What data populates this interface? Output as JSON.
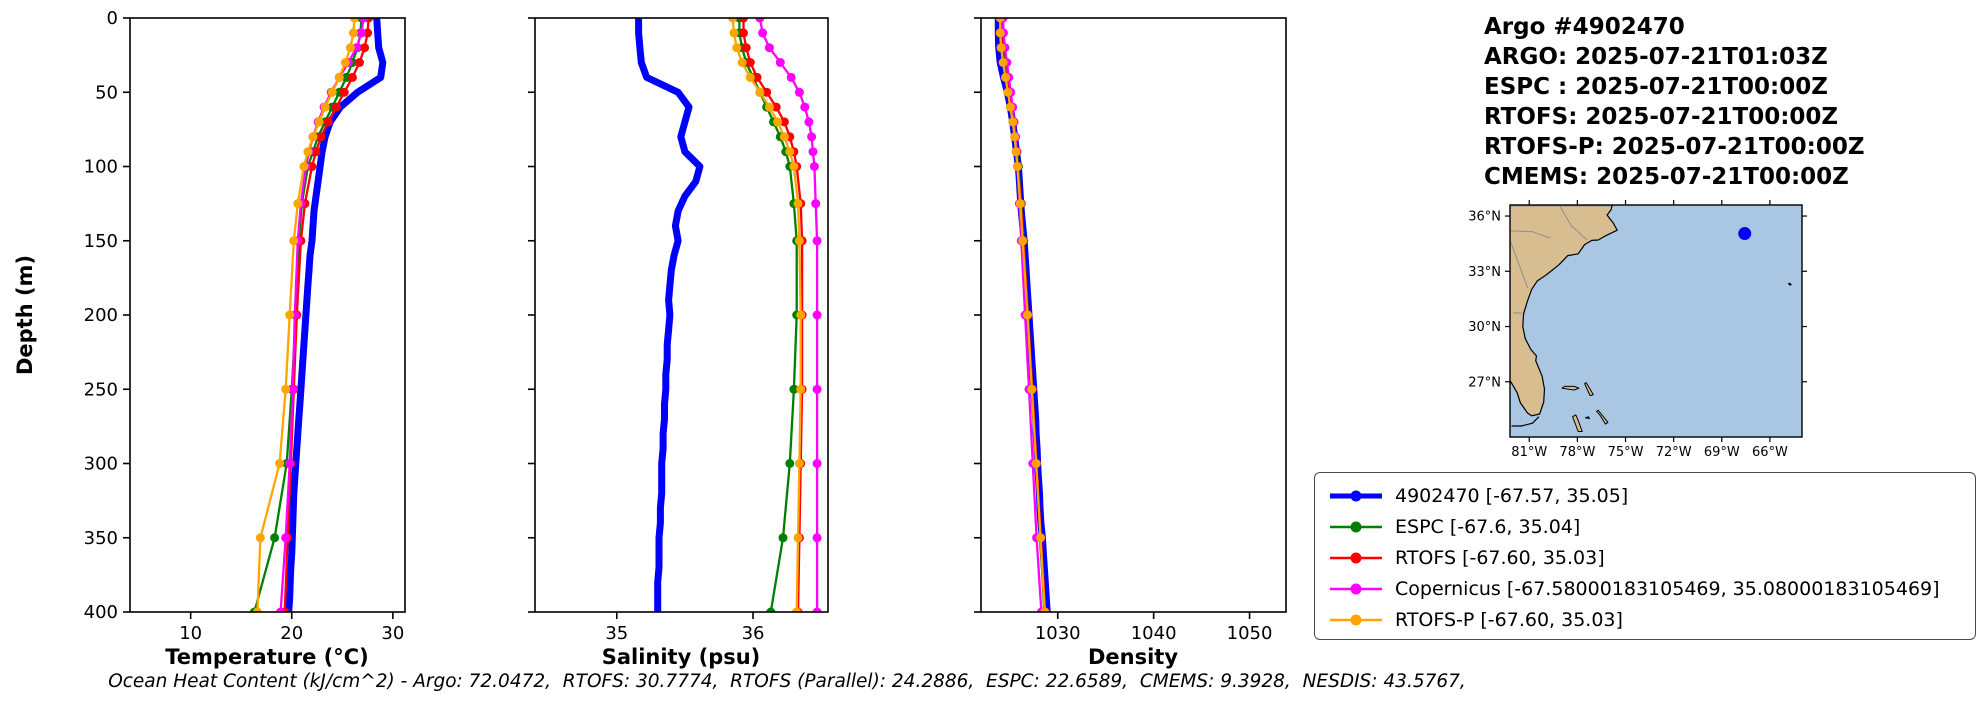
{
  "header": {
    "lines": [
      "Argo #4902470",
      "ARGO: 2025-07-21T01:03Z",
      "ESPC : 2025-07-21T00:00Z",
      "RTOFS: 2025-07-21T00:00Z",
      "RTOFS-P: 2025-07-21T00:00Z",
      "CMEMS: 2025-07-21T00:00Z"
    ]
  },
  "caption": "Ocean Heat Content (kJ/cm^2) - Argo: 72.0472,  RTOFS: 30.7774,  RTOFS (Parallel): 24.2886,  ESPC: 22.6589,  CMEMS: 9.3928,  NESDIS: 43.5767,",
  "legend": {
    "entries": [
      {
        "label": "4902470 [-67.57, 35.05]",
        "color": "#0000ff"
      },
      {
        "label": "ESPC [-67.6, 35.04]",
        "color": "#008000"
      },
      {
        "label": "RTOFS [-67.60, 35.03]",
        "color": "#ff0000"
      },
      {
        "label": "Copernicus [-67.58000183105469, 35.08000183105469]",
        "color": "#ff00ff"
      },
      {
        "label": "RTOFS-P [-67.60, 35.03]",
        "color": "#ffa500"
      }
    ]
  },
  "map": {
    "extent": {
      "lon": [
        -82.2,
        -64.0
      ],
      "lat": [
        24.0,
        36.6
      ]
    },
    "lat_tick_values": [
      36,
      33,
      30,
      27
    ],
    "lat_tick_labels": [
      "36°N",
      "33°N",
      "30°N",
      "27°N"
    ],
    "lon_tick_values": [
      -81,
      -78,
      -75,
      -72,
      -69,
      -66
    ],
    "lon_tick_labels": [
      "81°W",
      "78°W",
      "75°W",
      "72°W",
      "69°W",
      "66°W"
    ],
    "ocean_color": "#a9c6e3",
    "land_color": "#d8bd90",
    "float_marker": {
      "lon": -67.57,
      "lat": 35.05,
      "color": "#0000ff"
    }
  },
  "chart_data": {
    "type": "line",
    "depth": {
      "label": "Depth (m)",
      "lim": [
        0,
        400
      ],
      "ticks": [
        0,
        50,
        100,
        150,
        200,
        250,
        300,
        350,
        400
      ]
    },
    "panels": [
      {
        "id": "temperature",
        "xlabel": "Temperature (°C)",
        "xlim": [
          4.0,
          31.2
        ],
        "xticks": [
          10,
          20,
          30
        ]
      },
      {
        "id": "salinity",
        "xlabel": "Salinity (psu)",
        "xlim": [
          34.4,
          36.55
        ],
        "xticks": [
          35,
          36
        ]
      },
      {
        "id": "density",
        "xlabel": "Density",
        "xlim": [
          1022.0,
          1053.8
        ],
        "xticks": [
          1030,
          1040,
          1050
        ]
      }
    ],
    "series": [
      {
        "name": "4902470",
        "color": "#0000ff",
        "line_width": 7,
        "marker_size": 0,
        "depths": [
          0,
          10,
          20,
          30,
          40,
          50,
          60,
          70,
          80,
          90,
          100,
          110,
          120,
          130,
          140,
          150,
          160,
          170,
          180,
          190,
          200,
          210,
          220,
          230,
          240,
          250,
          260,
          270,
          280,
          290,
          300,
          310,
          320,
          330,
          340,
          350,
          360,
          370,
          380,
          390,
          400
        ],
        "temperature": [
          28.4,
          28.5,
          28.6,
          29.0,
          28.8,
          26.5,
          24.8,
          23.8,
          23.3,
          23.0,
          22.8,
          22.6,
          22.4,
          22.2,
          22.1,
          22.0,
          21.8,
          21.7,
          21.6,
          21.5,
          21.4,
          21.3,
          21.2,
          21.1,
          21.0,
          20.9,
          20.8,
          20.7,
          20.6,
          20.5,
          20.4,
          20.3,
          20.2,
          20.15,
          20.1,
          20.05,
          20.0,
          19.9,
          19.85,
          19.8,
          19.7
        ],
        "salinity": [
          35.16,
          35.16,
          35.17,
          35.18,
          35.22,
          35.45,
          35.53,
          35.5,
          35.47,
          35.5,
          35.61,
          35.58,
          35.5,
          35.45,
          35.43,
          35.45,
          35.42,
          35.4,
          35.39,
          35.38,
          35.39,
          35.38,
          35.37,
          35.37,
          35.36,
          35.36,
          35.35,
          35.35,
          35.34,
          35.34,
          35.33,
          35.33,
          35.33,
          35.32,
          35.32,
          35.31,
          35.31,
          35.31,
          35.3,
          35.3,
          35.3
        ],
        "density": [
          1023.8,
          1023.8,
          1023.85,
          1024.0,
          1024.35,
          1024.75,
          1025.05,
          1025.3,
          1025.5,
          1025.7,
          1025.9,
          1026.0,
          1026.1,
          1026.2,
          1026.35,
          1026.5,
          1026.6,
          1026.7,
          1026.8,
          1026.9,
          1027.0,
          1027.1,
          1027.2,
          1027.3,
          1027.4,
          1027.5,
          1027.6,
          1027.7,
          1027.75,
          1027.85,
          1027.9,
          1028.0,
          1028.1,
          1028.15,
          1028.25,
          1028.4,
          1028.5,
          1028.6,
          1028.7,
          1028.8,
          1028.9
        ]
      },
      {
        "name": "ESPC",
        "color": "#008000",
        "line_width": 2.3,
        "marker_size": 4.5,
        "depths": [
          0,
          10,
          20,
          30,
          40,
          50,
          60,
          70,
          80,
          90,
          100,
          125,
          150,
          200,
          250,
          300,
          350,
          400
        ],
        "temperature": [
          26.9,
          26.8,
          26.5,
          26.0,
          25.4,
          24.7,
          24.0,
          23.3,
          22.6,
          22.1,
          21.6,
          21.0,
          20.7,
          20.4,
          20.0,
          19.5,
          18.3,
          16.3
        ],
        "salinity": [
          35.9,
          35.9,
          35.92,
          35.95,
          36.0,
          36.05,
          36.1,
          36.15,
          36.2,
          36.24,
          36.27,
          36.3,
          36.32,
          36.32,
          36.3,
          36.27,
          36.22,
          36.13
        ],
        "density": [
          1024.2,
          1024.2,
          1024.3,
          1024.5,
          1024.7,
          1024.95,
          1025.2,
          1025.4,
          1025.6,
          1025.75,
          1025.9,
          1026.2,
          1026.45,
          1026.9,
          1027.35,
          1027.8,
          1028.2,
          1028.6
        ]
      },
      {
        "name": "RTOFS",
        "color": "#ff0000",
        "line_width": 2.3,
        "marker_size": 4.5,
        "depths": [
          0,
          10,
          20,
          30,
          40,
          50,
          60,
          70,
          80,
          90,
          100,
          125,
          150,
          200,
          250,
          300,
          350,
          400
        ],
        "temperature": [
          27.6,
          27.5,
          27.2,
          26.7,
          26.0,
          25.2,
          24.4,
          23.6,
          22.9,
          22.4,
          22.0,
          21.3,
          20.9,
          20.5,
          20.2,
          19.9,
          19.6,
          19.3
        ],
        "salinity": [
          35.93,
          35.93,
          35.95,
          35.98,
          36.03,
          36.1,
          36.17,
          36.23,
          36.27,
          36.3,
          36.32,
          36.35,
          36.36,
          36.36,
          36.36,
          36.35,
          36.34,
          36.33
        ],
        "density": [
          1024.1,
          1024.1,
          1024.2,
          1024.4,
          1024.65,
          1024.9,
          1025.15,
          1025.35,
          1025.55,
          1025.7,
          1025.85,
          1026.15,
          1026.4,
          1026.9,
          1027.35,
          1027.8,
          1028.25,
          1028.7
        ]
      },
      {
        "name": "Copernicus",
        "color": "#ff00ff",
        "line_width": 2.3,
        "marker_size": 4.5,
        "depths": [
          0,
          10,
          20,
          30,
          40,
          50,
          60,
          70,
          80,
          90,
          100,
          125,
          150,
          200,
          250,
          300,
          350,
          400
        ],
        "temperature": [
          27.1,
          26.9,
          26.4,
          25.6,
          24.7,
          23.9,
          23.2,
          22.6,
          22.1,
          21.7,
          21.4,
          20.9,
          20.6,
          20.3,
          20.1,
          19.8,
          19.4,
          18.9
        ],
        "salinity": [
          36.05,
          36.07,
          36.12,
          36.2,
          36.28,
          36.34,
          36.38,
          36.41,
          36.43,
          36.44,
          36.45,
          36.46,
          36.47,
          36.47,
          36.47,
          36.47,
          36.47,
          36.47
        ],
        "density": [
          1024.3,
          1024.35,
          1024.5,
          1024.7,
          1024.9,
          1025.1,
          1025.3,
          1025.45,
          1025.6,
          1025.7,
          1025.8,
          1026.0,
          1026.2,
          1026.6,
          1027.0,
          1027.4,
          1027.8,
          1028.3
        ]
      },
      {
        "name": "RTOFS-P",
        "color": "#ffa500",
        "line_width": 2.3,
        "marker_size": 4.5,
        "depths": [
          0,
          10,
          20,
          30,
          40,
          50,
          60,
          70,
          80,
          90,
          100,
          125,
          150,
          200,
          250,
          300,
          350,
          400
        ],
        "temperature": [
          26.2,
          26.1,
          25.8,
          25.3,
          24.7,
          24.0,
          23.3,
          22.7,
          22.1,
          21.6,
          21.2,
          20.6,
          20.2,
          19.8,
          19.4,
          18.8,
          16.9,
          16.6
        ],
        "salinity": [
          35.85,
          35.86,
          35.88,
          35.92,
          35.98,
          36.05,
          36.12,
          36.18,
          36.23,
          36.27,
          36.3,
          36.33,
          36.34,
          36.35,
          36.35,
          36.34,
          36.33,
          36.32
        ],
        "density": [
          1024.0,
          1024.0,
          1024.1,
          1024.3,
          1024.55,
          1024.8,
          1025.05,
          1025.3,
          1025.5,
          1025.65,
          1025.8,
          1026.1,
          1026.35,
          1026.85,
          1027.3,
          1027.75,
          1028.2,
          1028.65
        ]
      }
    ]
  }
}
